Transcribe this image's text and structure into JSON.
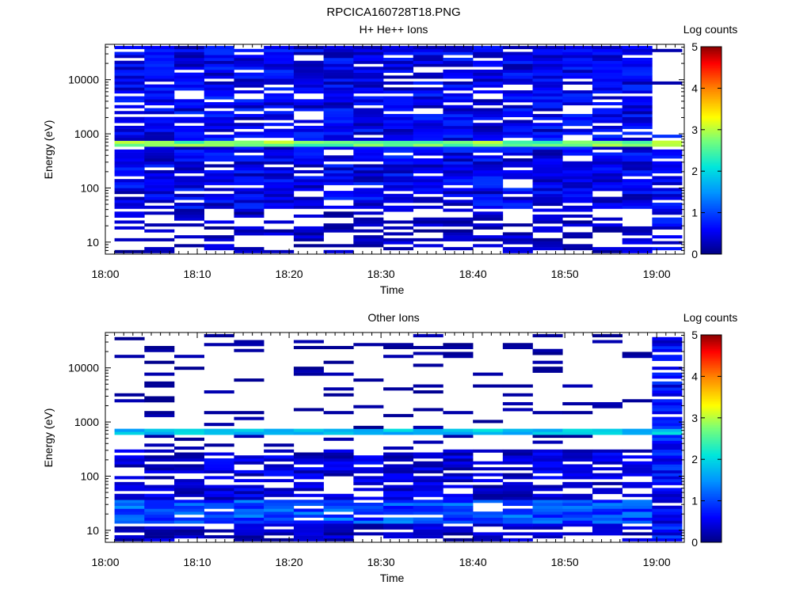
{
  "figure_title": "RPCICA160728T18.PNG",
  "chart_data": [
    {
      "type": "heatmap",
      "title": "H+ He++ Ions",
      "xlabel": "Time",
      "ylabel": "Energy (eV)",
      "colorbar_label": "Log counts",
      "colorbar_ticks": [
        "0",
        "1",
        "2",
        "3",
        "4",
        "5"
      ],
      "colorbar_range": [
        0,
        5
      ],
      "colormap": "rainbow",
      "x_ticks": [
        "18:00",
        "18:10",
        "18:20",
        "18:30",
        "18:40",
        "18:50",
        "19:00"
      ],
      "x_range": [
        "18:00",
        "19:03"
      ],
      "y_scale": "log",
      "y_range": [
        6,
        45000
      ],
      "y_ticks": [
        "10",
        "100",
        "1000",
        "10000"
      ],
      "time_bins": 19,
      "energy_bins": 70,
      "description_profile": "broad low-level background (log counts ~0.2-0.9) over 10 eV - 40 keV with a bright band (~2.5-3) near 600-700 eV; last time bin mostly empty above 1 keV"
    },
    {
      "type": "heatmap",
      "title": "Other Ions",
      "xlabel": "Time",
      "ylabel": "Energy (eV)",
      "colorbar_label": "Log counts",
      "colorbar_ticks": [
        "0",
        "1",
        "2",
        "3",
        "4",
        "5"
      ],
      "colorbar_range": [
        0,
        5
      ],
      "colormap": "rainbow",
      "x_ticks": [
        "18:00",
        "18:10",
        "18:20",
        "18:30",
        "18:40",
        "18:50",
        "19:00"
      ],
      "x_range": [
        "18:00",
        "19:03"
      ],
      "y_scale": "log",
      "y_range": [
        6,
        45000
      ],
      "y_ticks": [
        "10",
        "100",
        "1000",
        "10000"
      ],
      "time_bins": 19,
      "energy_bins": 70,
      "description_profile": "sparse counts at high energy, denser below 300 eV with enhancement (~1-1.5) at 15-30 eV, band near 650 eV (~1.5-2); last time bin filled up to ~40 keV"
    }
  ]
}
